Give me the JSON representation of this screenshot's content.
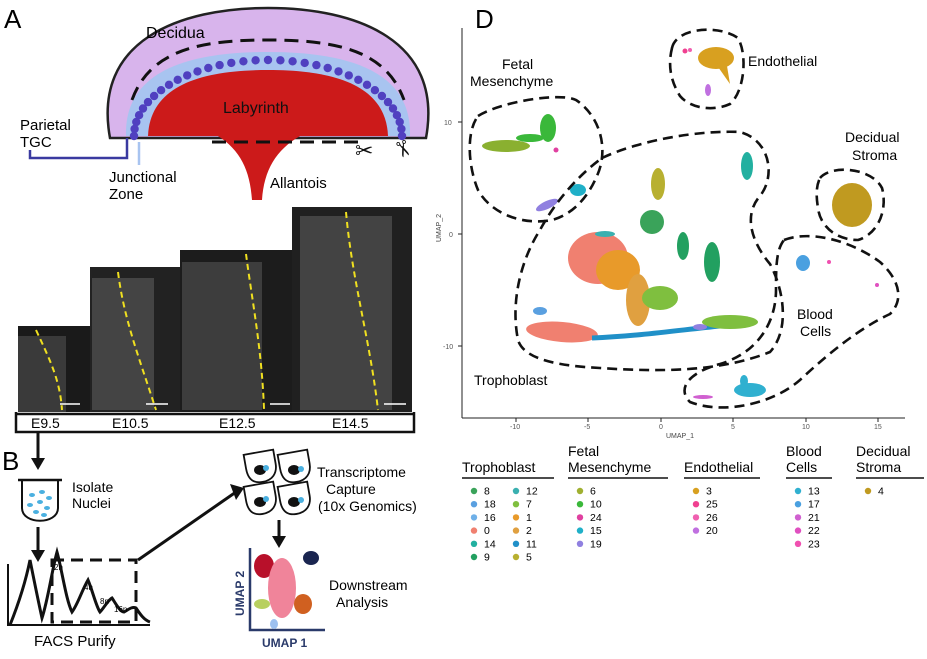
{
  "panels": {
    "a": "A",
    "b": "B",
    "d": "D"
  },
  "panel_a": {
    "decidua": "Decidua",
    "labyrinth": "Labyrinth",
    "parietal": [
      "Parietal",
      "TGC"
    ],
    "junctional": [
      "Junctional",
      "Zone"
    ],
    "allantois": "Allantois",
    "stages": [
      "E9.5",
      "E10.5",
      "E12.5",
      "E14.5"
    ]
  },
  "panel_b": {
    "isolate": [
      "Isolate",
      "Nuclei"
    ],
    "facs": "FACS Purify",
    "peaks": [
      "2n",
      "4n",
      "8n",
      "16n"
    ],
    "transcriptome": [
      "Transcriptome",
      "Capture",
      "(10x Genomics)"
    ],
    "downstream": [
      "Downstream",
      "Analysis"
    ],
    "umap_x": "UMAP 1",
    "umap_y": "UMAP 2"
  },
  "panel_d": {
    "xlabel": "UMAP_1",
    "ylabel": "UMAP_2",
    "xticks": [
      "-10",
      "-5",
      "0",
      "5",
      "10",
      "15"
    ],
    "yticks": [
      "10",
      "0",
      "-10"
    ],
    "cluster_labels": {
      "fetal": [
        "Fetal",
        "Mesenchyme"
      ],
      "endothelial": "Endothelial",
      "decidual": [
        "Decidual",
        "Stroma"
      ],
      "blood": [
        "Blood",
        "Cells"
      ],
      "trophoblast": "Trophoblast"
    }
  },
  "legend": {
    "groups": [
      {
        "title": [
          "Trophoblast"
        ],
        "cols": [
          [
            {
              "id": "8",
              "color": "#3aa35a"
            },
            {
              "id": "18",
              "color": "#5aa0e0"
            },
            {
              "id": "16",
              "color": "#6fb0e8"
            },
            {
              "id": "0",
              "color": "#f08070"
            },
            {
              "id": "14",
              "color": "#22b0a0"
            },
            {
              "id": "9",
              "color": "#22a060"
            }
          ],
          [
            {
              "id": "12",
              "color": "#3ab0b0"
            },
            {
              "id": "7",
              "color": "#7fbf3f"
            },
            {
              "id": "1",
              "color": "#e89a2a"
            },
            {
              "id": "2",
              "color": "#e0a040"
            },
            {
              "id": "11",
              "color": "#2090c8"
            },
            {
              "id": "5",
              "color": "#b8b030"
            }
          ]
        ]
      },
      {
        "title": [
          "Fetal",
          "Mesenchyme"
        ],
        "cols": [
          [
            {
              "id": "6",
              "color": "#a0b030"
            },
            {
              "id": "10",
              "color": "#3ab83a"
            },
            {
              "id": "24",
              "color": "#e040a0"
            },
            {
              "id": "15",
              "color": "#20b0c8"
            },
            {
              "id": "19",
              "color": "#9080e0"
            }
          ]
        ]
      },
      {
        "title": [
          "Endothelial"
        ],
        "cols": [
          [
            {
              "id": "3",
              "color": "#d8a020"
            },
            {
              "id": "25",
              "color": "#f04090"
            },
            {
              "id": "26",
              "color": "#f060b0"
            },
            {
              "id": "20",
              "color": "#c070e0"
            }
          ]
        ]
      },
      {
        "title": [
          "Blood",
          "Cells"
        ],
        "cols": [
          [
            {
              "id": "13",
              "color": "#30b0d0"
            },
            {
              "id": "17",
              "color": "#4aa0e0"
            },
            {
              "id": "21",
              "color": "#d060d0"
            },
            {
              "id": "22",
              "color": "#e050c0"
            },
            {
              "id": "23",
              "color": "#f050b0"
            }
          ]
        ]
      },
      {
        "title": [
          "Decidual",
          "Stroma"
        ],
        "cols": [
          [
            {
              "id": "4",
              "color": "#c09a20"
            }
          ]
        ]
      }
    ]
  },
  "colors": {
    "decidua": "#d8b4ec",
    "labyrinth": "#cc1a1a",
    "junctional_band": "#a8c4f0",
    "tgc_dots": "#5040c0",
    "stage_line": "#f0e020"
  }
}
